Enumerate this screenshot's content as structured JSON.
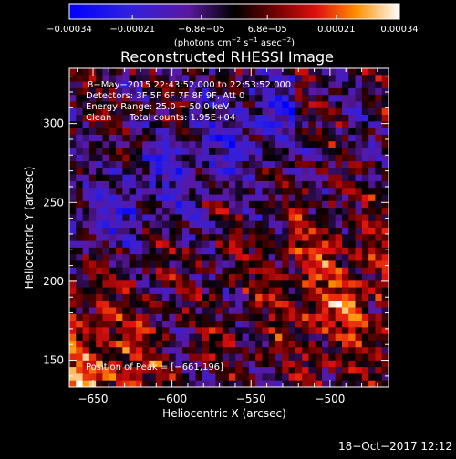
{
  "chart_data": {
    "type": "heatmap",
    "title": "Reconstructed RHESSI Image",
    "xlabel": "Heliocentric X (arcsec)",
    "ylabel": "Heliocentric Y (arcsec)",
    "xlim": [
      -665,
      -463
    ],
    "ylim": [
      133,
      335
    ],
    "x_ticks": [
      -650,
      -600,
      -550,
      -500
    ],
    "x_tick_labels": [
      "−650",
      "−600",
      "−550",
      "−500"
    ],
    "y_ticks": [
      150,
      200,
      250,
      300
    ],
    "y_tick_labels": [
      "150",
      "200",
      "250",
      "300"
    ],
    "colorbar": {
      "range": [
        -0.00034,
        0.00034
      ],
      "ticks": [
        -0.00034,
        -0.00021,
        -6.8e-05,
        6.8e-05,
        0.00021,
        0.00034
      ],
      "tick_labels": [
        "−0.00034",
        "−0.00021",
        "−6.8e−05",
        "6.8e−05",
        "0.00021",
        "0.00034"
      ],
      "unit_main": "(photons cm",
      "unit_exp1": "−2",
      "unit_mid": " s",
      "unit_exp2": "−1",
      "unit_end": " asec",
      "unit_exp3": "−2",
      "unit_close": ")"
    },
    "annotations": {
      "time_range": "8−May−2015 22:43:52.000 to 22:53:52.000",
      "detectors": "Detectors: 3F 5F 6F 7F 8F 9F, Att 0",
      "energy": "Energy Range: 25.0 − 50.0 keV",
      "method": "Clean",
      "total_counts": "Total counts: 1.95E+04",
      "peak": "Position of Peak = [−661,196]"
    },
    "pattern": "diagonal striped noise; bright bands at lower-left and lower-right, dark blue band along upper-left"
  },
  "footer": {
    "timestamp": "18−Oct−2017 12:12"
  }
}
